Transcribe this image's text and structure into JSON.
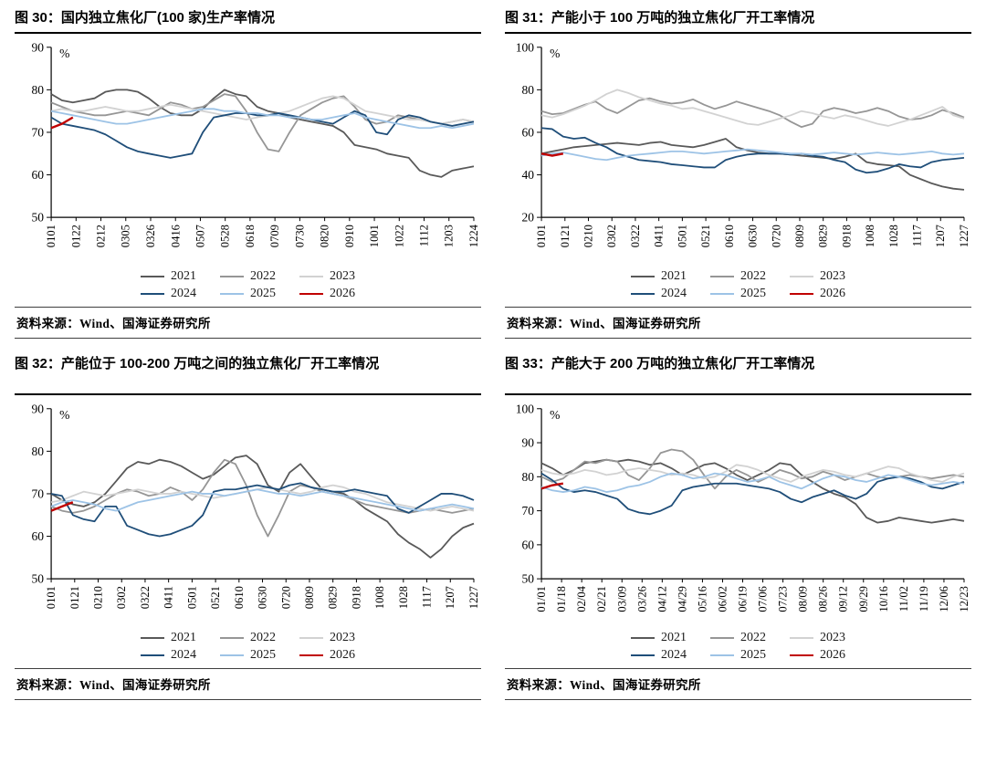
{
  "colors": {
    "2021": "#595959",
    "2022": "#969696",
    "2023": "#d2d2d2",
    "2024": "#1f4e79",
    "2025": "#9dc3e6",
    "2026": "#c00000"
  },
  "source_label": "资料来源：Wind、国海证券研究所",
  "chart_data": [
    {
      "type": "line",
      "title": "图 30：国内独立焦化厂(100 家)生产率情况",
      "ylabel": "%",
      "ylim": [
        50,
        90
      ],
      "ytick_step": 10,
      "x_count": 40,
      "x_tick_labels": [
        "0101",
        "0122",
        "0212",
        "0305",
        "0326",
        "0416",
        "0507",
        "0528",
        "0618",
        "0709",
        "0730",
        "0820",
        "0910",
        "1001",
        "1022",
        "1112",
        "1203",
        "1224"
      ],
      "legend_rows": [
        [
          "2021",
          "2022",
          "2023"
        ],
        [
          "2024",
          "2025",
          "2026"
        ]
      ],
      "series": [
        {
          "name": "2021",
          "values": [
            79,
            77.5,
            77,
            77.5,
            78,
            79.5,
            80,
            80,
            79.5,
            78,
            76,
            74.5,
            74,
            74,
            75.5,
            78,
            80,
            79,
            78.5,
            76,
            75,
            74.5,
            73.5,
            73,
            72.5,
            72,
            71.5,
            70,
            67,
            66.5,
            66,
            65,
            64.5,
            64,
            61,
            60,
            59.5,
            61,
            61.5,
            62
          ]
        },
        {
          "name": "2022",
          "values": [
            77,
            76,
            75,
            74.5,
            74,
            74,
            74.5,
            75,
            74.5,
            74,
            75.5,
            77,
            76.5,
            75.5,
            76,
            77.5,
            79,
            78.5,
            75,
            70,
            66,
            65.5,
            70,
            74,
            75.5,
            77,
            78,
            78.5,
            76,
            73,
            72,
            72.5,
            74,
            73.5,
            73,
            72.5,
            72,
            72.5,
            73,
            72.5
          ]
        },
        {
          "name": "2023",
          "values": [
            75,
            75.5,
            75,
            75,
            75.5,
            76,
            75.5,
            75,
            75,
            75.5,
            76,
            76.5,
            76,
            75.5,
            75,
            74.5,
            74,
            73.5,
            73,
            73.5,
            74,
            74.5,
            75,
            76,
            77,
            78,
            78.5,
            78,
            76.5,
            75,
            74.5,
            74,
            73.5,
            73,
            73,
            72.5,
            72,
            72.5,
            73,
            72.5
          ]
        },
        {
          "name": "2024",
          "values": [
            73.5,
            72,
            71.5,
            71,
            70.5,
            69.5,
            68,
            66.5,
            65.5,
            65,
            64.5,
            64,
            64.5,
            65,
            70,
            73.5,
            74,
            74.5,
            74.5,
            74,
            74,
            74.5,
            74,
            73.5,
            73,
            72.5,
            72,
            73.5,
            75,
            74,
            70,
            69.5,
            73,
            74,
            73.5,
            72.5,
            72,
            71.5,
            72,
            72.5
          ]
        },
        {
          "name": "2025",
          "values": [
            75,
            74.5,
            74,
            73.5,
            73,
            72.5,
            72,
            72,
            72.5,
            73,
            73.5,
            74,
            74.5,
            75,
            75.5,
            75.5,
            75,
            75,
            74.5,
            74.5,
            74,
            74,
            73.5,
            73.5,
            73,
            73,
            73.5,
            74,
            74.5,
            73.5,
            73,
            72.5,
            72,
            71.5,
            71,
            71,
            71.5,
            71,
            71.5,
            72
          ]
        },
        {
          "name": "2026",
          "values": [
            71,
            72,
            73.5
          ]
        }
      ],
      "source": "资料来源：Wind、国海证券研究所"
    },
    {
      "type": "line",
      "title": "图 31：产能小于 100 万吨的独立焦化厂开工率情况",
      "ylabel": "%",
      "ylim": [
        20,
        100
      ],
      "ytick_step": 20,
      "x_count": 40,
      "x_tick_labels": [
        "0101",
        "0121",
        "0210",
        "0302",
        "0322",
        "0411",
        "0501",
        "0521",
        "0610",
        "0630",
        "0720",
        "0809",
        "0829",
        "0918",
        "1008",
        "1028",
        "1117",
        "1207",
        "1227"
      ],
      "legend_rows": [
        [
          "2021",
          "2022",
          "2023"
        ],
        [
          "2024",
          "2025",
          "2026"
        ]
      ],
      "series": [
        {
          "name": "2021",
          "values": [
            50,
            51,
            52,
            53,
            53.5,
            54,
            54.5,
            55,
            54.5,
            54,
            55,
            55.5,
            54,
            53.5,
            53,
            54,
            55.5,
            57,
            53,
            51.5,
            50.5,
            50,
            50,
            49.5,
            49,
            48.5,
            48,
            47.5,
            48.5,
            50,
            46,
            45,
            44.5,
            44,
            40,
            38,
            36,
            34.5,
            33.5,
            33
          ]
        },
        {
          "name": "2022",
          "values": [
            70,
            68.5,
            69,
            71,
            73,
            74.5,
            71,
            69,
            72,
            75,
            76,
            74.5,
            73.5,
            74,
            75.5,
            73,
            71,
            72.5,
            74.5,
            73,
            71.5,
            70,
            68,
            65,
            62.5,
            64,
            70,
            71.5,
            70.5,
            69,
            70,
            71.5,
            70,
            67.5,
            66,
            66.5,
            68,
            70.5,
            69,
            67
          ]
        },
        {
          "name": "2023",
          "values": [
            68,
            67,
            68.5,
            70.5,
            72.5,
            75,
            78,
            80,
            78.5,
            76.5,
            75,
            73.5,
            72.5,
            71,
            71.5,
            70,
            68.5,
            67,
            65.5,
            64,
            63.5,
            65,
            66.5,
            68,
            70,
            69,
            67.5,
            66.5,
            68,
            67,
            65.5,
            64,
            63,
            64.5,
            66,
            68,
            70,
            72,
            68,
            66.5
          ]
        },
        {
          "name": "2024",
          "values": [
            62,
            61.5,
            58,
            57,
            57.5,
            55,
            53,
            50,
            48.5,
            47,
            46.5,
            46,
            45,
            44.5,
            44,
            43.5,
            43.5,
            47,
            48.5,
            49.5,
            50,
            50,
            50,
            49.5,
            50,
            49,
            48.5,
            47,
            46,
            42.5,
            41,
            41.5,
            43,
            45,
            44,
            43.5,
            46,
            47,
            47.5,
            48
          ]
        },
        {
          "name": "2025",
          "values": [
            49,
            50,
            50.5,
            49.5,
            48.5,
            47.5,
            47,
            48,
            49,
            49.5,
            50,
            50.5,
            51,
            51,
            50.5,
            50,
            50.5,
            51,
            51.5,
            52,
            51.5,
            51,
            50.5,
            50,
            50,
            49.5,
            50,
            50.5,
            50,
            49.5,
            50,
            50.5,
            50,
            49.5,
            50,
            50.5,
            51,
            50,
            49.5,
            50
          ]
        },
        {
          "name": "2026",
          "values": [
            50,
            49,
            50
          ]
        }
      ],
      "source": "资料来源：Wind、国海证券研究所"
    },
    {
      "type": "line",
      "title": "图 32：产能位于 100-200 万吨之间的独立焦化厂开工率情况",
      "ylabel": "%",
      "ylim": [
        50,
        90
      ],
      "ytick_step": 10,
      "x_count": 40,
      "x_tick_labels": [
        "0101",
        "0121",
        "0210",
        "0302",
        "0322",
        "0411",
        "0501",
        "0521",
        "0610",
        "0630",
        "0720",
        "0809",
        "0829",
        "0918",
        "1008",
        "1028",
        "1117",
        "1207",
        "1227"
      ],
      "legend_rows": [
        [
          "2021",
          "2022",
          "2023"
        ],
        [
          "2024",
          "2025",
          "2026"
        ]
      ],
      "series": [
        {
          "name": "2021",
          "values": [
            70,
            68.5,
            67.5,
            67,
            68,
            70,
            73,
            76,
            77.5,
            77,
            78,
            77.5,
            76.5,
            75,
            73.5,
            74.5,
            76.5,
            78.5,
            79,
            77,
            72,
            70.5,
            75,
            77,
            74,
            71,
            70.5,
            70,
            68.5,
            66.5,
            65,
            63.5,
            60.5,
            58.5,
            57,
            55,
            57,
            60,
            62,
            63
          ]
        },
        {
          "name": "2022",
          "values": [
            67,
            66,
            65.5,
            66,
            67,
            68.5,
            70,
            71,
            70.5,
            69.5,
            70,
            71.5,
            70.5,
            68.5,
            71,
            75,
            78,
            77,
            72,
            65,
            60,
            65,
            70.5,
            72,
            71.5,
            70.5,
            70,
            69.5,
            68.5,
            67.5,
            67,
            66.5,
            66,
            65.5,
            66,
            66.5,
            66,
            65.5,
            66,
            66.5
          ]
        },
        {
          "name": "2023",
          "values": [
            68,
            68.5,
            69.5,
            70.5,
            70,
            69.5,
            70,
            70.5,
            71,
            70.5,
            70,
            70,
            70.5,
            70,
            69.5,
            69,
            69.5,
            70,
            70.5,
            71,
            71.5,
            71,
            70.5,
            70,
            70.5,
            71.5,
            72,
            71.5,
            70.5,
            70,
            69,
            68,
            67.5,
            67,
            66.5,
            66,
            66.5,
            67,
            66.5,
            66
          ]
        },
        {
          "name": "2024",
          "values": [
            70,
            69.5,
            65,
            64,
            63.5,
            67,
            67,
            62.5,
            61.5,
            60.5,
            60,
            60.5,
            61.5,
            62.5,
            65,
            70.5,
            71,
            71,
            71.5,
            72,
            71.5,
            71,
            72,
            72.5,
            71.5,
            71,
            70.5,
            70.5,
            71,
            70.5,
            70,
            69.5,
            66.5,
            65.5,
            67,
            68.5,
            70,
            70,
            69.5,
            68.5
          ]
        },
        {
          "name": "2025",
          "values": [
            67,
            68,
            68.5,
            68,
            67.5,
            66.5,
            66,
            67,
            68,
            68.5,
            69,
            69.5,
            70,
            70.5,
            70,
            70,
            69.5,
            70,
            70.5,
            71,
            70.5,
            70,
            70,
            69.5,
            70,
            70.5,
            70,
            69.5,
            69,
            68.5,
            68,
            67.5,
            67,
            66.5,
            66,
            66.5,
            67,
            67.5,
            67,
            66.5
          ]
        },
        {
          "name": "2026",
          "values": [
            66,
            67,
            68
          ]
        }
      ],
      "source": "资料来源：Wind、国海证券研究所"
    },
    {
      "type": "line",
      "title": "图 33：产能大于 200 万吨的独立焦化厂开工率情况",
      "ylabel": "%",
      "ylim": [
        50,
        100
      ],
      "ytick_step": 10,
      "x_count": 40,
      "x_tick_labels": [
        "01/01",
        "01/18",
        "02/04",
        "02/21",
        "03/09",
        "03/26",
        "04/12",
        "04/29",
        "05/16",
        "06/02",
        "06/19",
        "07/06",
        "07/23",
        "08/09",
        "08/26",
        "09/12",
        "09/29",
        "10/16",
        "11/02",
        "11/19",
        "12/06",
        "12/23"
      ],
      "legend_rows": [
        [
          "2021",
          "2022",
          "2023"
        ],
        [
          "2024",
          "2025",
          "2026"
        ]
      ],
      "series": [
        {
          "name": "2021",
          "values": [
            84,
            82.5,
            80.5,
            82,
            84,
            84.5,
            85,
            84.5,
            85,
            84.5,
            83.5,
            84,
            82.5,
            80.5,
            82,
            83.5,
            84,
            82.5,
            80.5,
            79,
            80.5,
            82,
            84,
            83.5,
            80.5,
            78.5,
            76.5,
            75,
            74,
            72,
            68,
            66.5,
            67,
            68,
            67.5,
            67,
            66.5,
            67,
            67.5,
            67
          ]
        },
        {
          "name": "2022",
          "values": [
            80,
            78.5,
            79.5,
            82,
            84.5,
            84,
            85,
            84.5,
            80.5,
            79,
            82.5,
            87,
            88,
            87.5,
            85,
            80.5,
            76.5,
            80,
            82,
            80.5,
            78.5,
            80,
            82,
            81,
            79.5,
            80,
            81.5,
            80.5,
            79,
            80,
            81,
            80,
            79.5,
            80,
            80.5,
            80,
            79.5,
            80,
            80.5,
            80
          ]
        },
        {
          "name": "2023",
          "values": [
            82,
            81,
            80.5,
            81,
            82,
            81.5,
            80.5,
            81,
            82,
            82.5,
            82,
            81.5,
            80.5,
            81,
            80.5,
            79.5,
            80,
            81.5,
            83.5,
            83,
            82,
            80.5,
            79.5,
            78.5,
            80,
            81,
            82,
            81.5,
            80.5,
            80,
            81,
            82,
            83,
            82.5,
            81,
            80,
            79,
            78.5,
            80,
            81
          ]
        },
        {
          "name": "2024",
          "values": [
            81,
            79,
            76.5,
            75.5,
            76,
            75.5,
            74.5,
            73.5,
            70.5,
            69.5,
            69,
            70,
            71.5,
            76,
            77,
            77.5,
            78,
            78,
            78,
            77.5,
            77,
            76.5,
            75.5,
            73.5,
            72.5,
            74,
            75,
            76,
            74.5,
            73.5,
            75,
            78.5,
            79.5,
            80,
            79.5,
            78.5,
            77,
            76.5,
            77.5,
            78.5
          ]
        },
        {
          "name": "2025",
          "values": [
            77,
            76,
            75.5,
            76,
            77,
            76.5,
            75.5,
            76,
            77,
            77.5,
            78.5,
            80,
            81,
            80.5,
            79.5,
            80,
            81,
            80.5,
            79.5,
            78.5,
            79,
            80,
            78.5,
            77.5,
            76.5,
            78,
            79.5,
            80.5,
            80,
            79,
            78.5,
            79.5,
            80.5,
            80,
            79,
            78,
            77.5,
            78,
            78.5,
            78
          ]
        },
        {
          "name": "2026",
          "values": [
            76.5,
            77.5,
            78
          ]
        }
      ],
      "source": "资料来源：Wind、国海证券研究所"
    }
  ]
}
